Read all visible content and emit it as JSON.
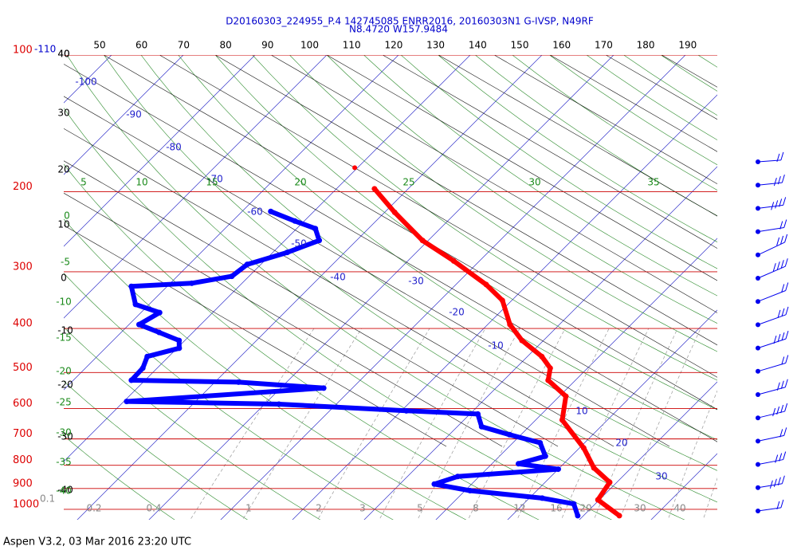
{
  "chart_data": {
    "type": "skewt",
    "title": "D20160303_224955_P.4 142745085 ENRR2016, 20160303N1 G-IVSP, N49RF",
    "subtitle": "N8.4720 W157.9484",
    "footer": "Aspen V3.2, 03 Mar 2016  23:20 UTC",
    "corner_top_label": "-110",
    "corner_bottom_label": "0.1",
    "pressure_ticks": [
      100,
      200,
      300,
      400,
      500,
      600,
      700,
      800,
      900,
      1000
    ],
    "top_labels": [
      40,
      50,
      60,
      70,
      80,
      90,
      100,
      110,
      120,
      130,
      140,
      150,
      160,
      170,
      180,
      190
    ],
    "isotherm_labels": [
      -100,
      -90,
      -80,
      -70,
      -60,
      -50,
      -40,
      -30,
      -20,
      -10,
      10,
      20,
      30
    ],
    "left_black_labels": [
      40,
      30,
      20,
      10,
      0,
      -10,
      -20,
      -30,
      -40
    ],
    "left_green_labels": [
      0,
      -5,
      -10,
      -15,
      -20,
      -25,
      -30,
      -35,
      -40
    ],
    "top_green_labels": [
      5,
      10,
      15,
      20,
      25,
      30,
      35
    ],
    "mixing_ratio_labels": [
      0.2,
      0.4,
      1,
      2,
      3,
      5,
      8,
      12,
      16,
      20,
      30,
      40
    ],
    "series": [
      {
        "name": "Temperature",
        "color": "#ff0000",
        "pressure": [
          1033,
          953,
          872,
          811,
          733,
          636,
          564,
          520,
          489,
          461,
          425,
          392,
          347,
          320,
          284,
          256,
          222,
          197
        ],
        "values": [
          25,
          19.8,
          19,
          14.8,
          10.6,
          3.7,
          0.9,
          -3.8,
          -5.2,
          -8,
          -13,
          -16.9,
          -21.3,
          -25.8,
          -33.6,
          -40.8,
          -48.6,
          -54.7
        ]
      },
      {
        "name": "Dewpoint",
        "color": "#0000ff",
        "pressure": [
          1033,
          973,
          945,
          910,
          880,
          847,
          816,
          794,
          764,
          714,
          685,
          658,
          617,
          607,
          587,
          579,
          541,
          525,
          520,
          489,
          461,
          442,
          425,
          408,
          392,
          369,
          354,
          323,
          318,
          307,
          289,
          272,
          256,
          241,
          232,
          221
        ],
        "values": [
          19.2,
          17,
          11.8,
          0.7,
          -5.2,
          -3,
          10,
          3.7,
          6.4,
          3.8,
          -1.6,
          -6.6,
          -8.9,
          -19.3,
          -38,
          -59.6,
          -34,
          -46.7,
          -61.9,
          -62,
          -63,
          -59.7,
          -60.8,
          -64.7,
          -68.6,
          -67.4,
          -71.9,
          -75,
          -67,
          -62.4,
          -61.9,
          -58,
          -55.2,
          -57.4,
          -61.3,
          -66
        ]
      }
    ],
    "outlier": {
      "pressure": 177,
      "value": -60.4
    }
  }
}
